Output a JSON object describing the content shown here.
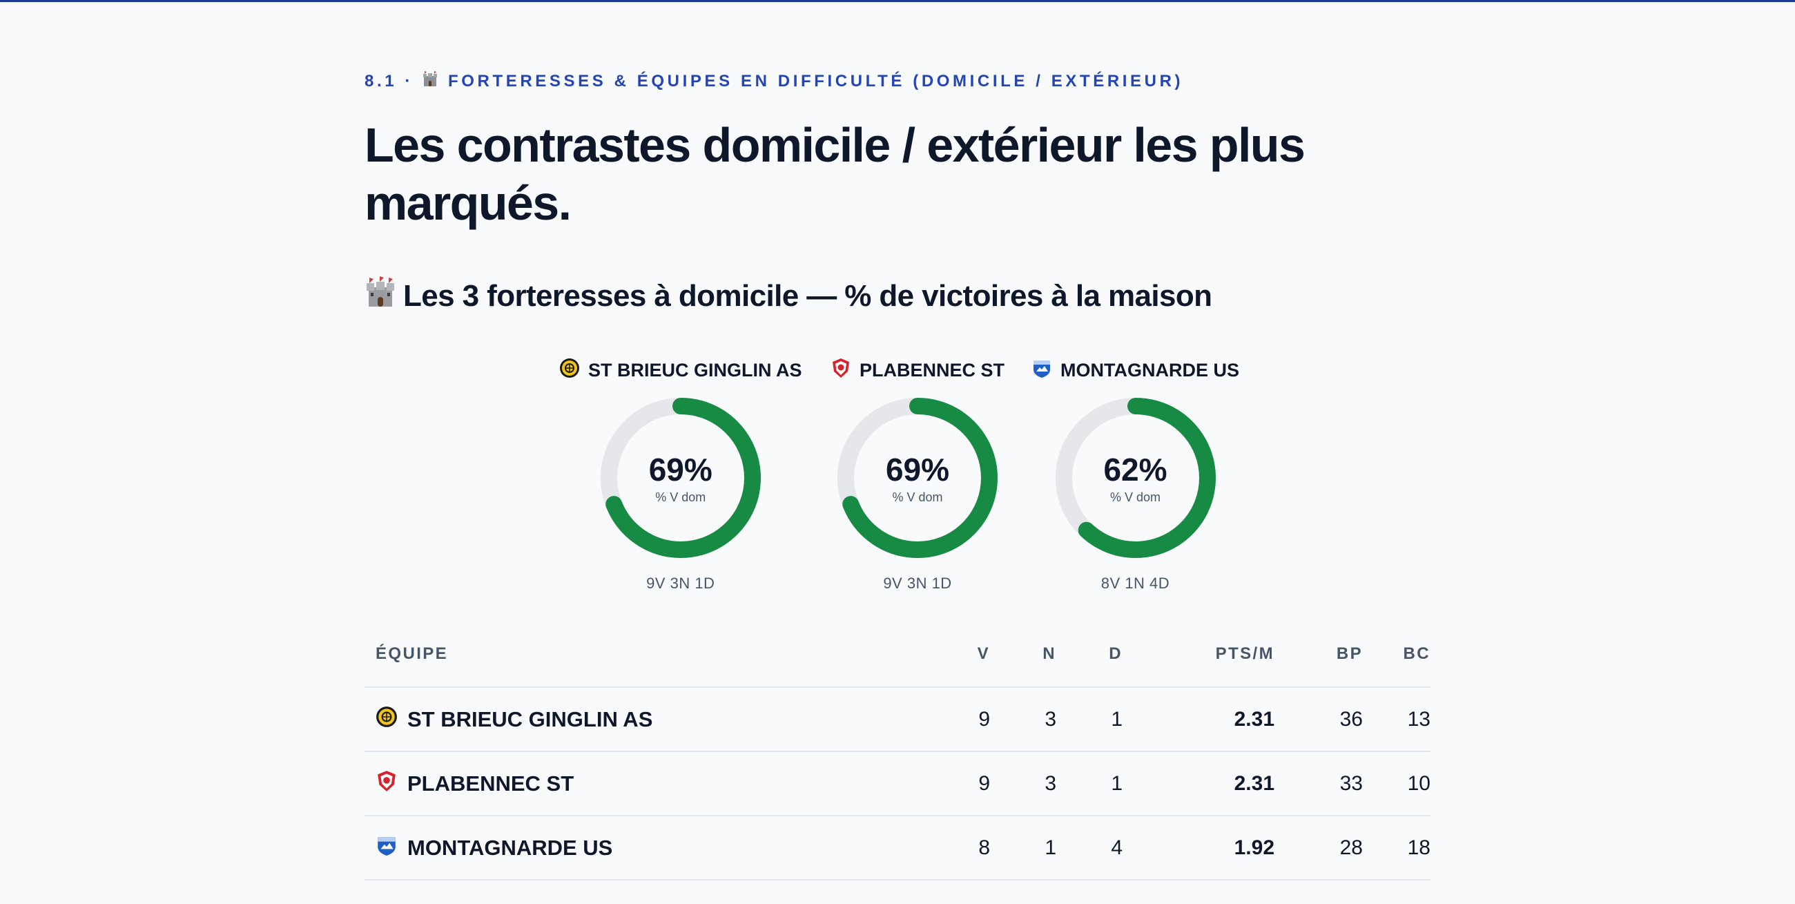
{
  "header": {
    "eyebrow_prefix": "8.1 ·",
    "eyebrow_text": "FORTERESSES & ÉQUIPES EN DIFFICULTÉ (DOMICILE / EXTÉRIEUR)",
    "title": "Les contrastes domicile / extérieur les plus marqués.",
    "eyebrow_icon": "castle-icon"
  },
  "section": {
    "title": "Les 3 forteresses à domicile — % de victoires à la maison",
    "icon": "castle-icon"
  },
  "colors": {
    "accent": "#2544b5",
    "donut_fill": "#178a43",
    "donut_track": "#e5e7eb"
  },
  "donuts": [
    {
      "team": "ST BRIEUC GINGLIN AS",
      "crest_icon": "yellow-crest-icon",
      "pct_label": "69%",
      "win_fraction": 0.69,
      "sub": "% V dom",
      "record": "9V 3N 1D"
    },
    {
      "team": "PLABENNEC ST",
      "crest_icon": "red-crest-icon",
      "pct_label": "69%",
      "win_fraction": 0.69,
      "sub": "% V dom",
      "record": "9V 3N 1D"
    },
    {
      "team": "MONTAGNARDE US",
      "crest_icon": "blue-crest-icon",
      "pct_label": "62%",
      "win_fraction": 0.62,
      "sub": "% V dom",
      "record": "8V 1N 4D"
    }
  ],
  "table": {
    "headers": [
      "ÉQUIPE",
      "V",
      "N",
      "D",
      "PTS/M",
      "BP",
      "BC"
    ],
    "rows": [
      {
        "team": "ST BRIEUC GINGLIN AS",
        "crest_icon": "yellow-crest-icon",
        "v": "9",
        "n": "3",
        "d": "1",
        "pts": "2.31",
        "bp": "36",
        "bc": "13"
      },
      {
        "team": "PLABENNEC ST",
        "crest_icon": "red-crest-icon",
        "v": "9",
        "n": "3",
        "d": "1",
        "pts": "2.31",
        "bp": "33",
        "bc": "10"
      },
      {
        "team": "MONTAGNARDE US",
        "crest_icon": "blue-crest-icon",
        "v": "8",
        "n": "1",
        "d": "4",
        "pts": "1.92",
        "bp": "28",
        "bc": "18"
      }
    ]
  }
}
